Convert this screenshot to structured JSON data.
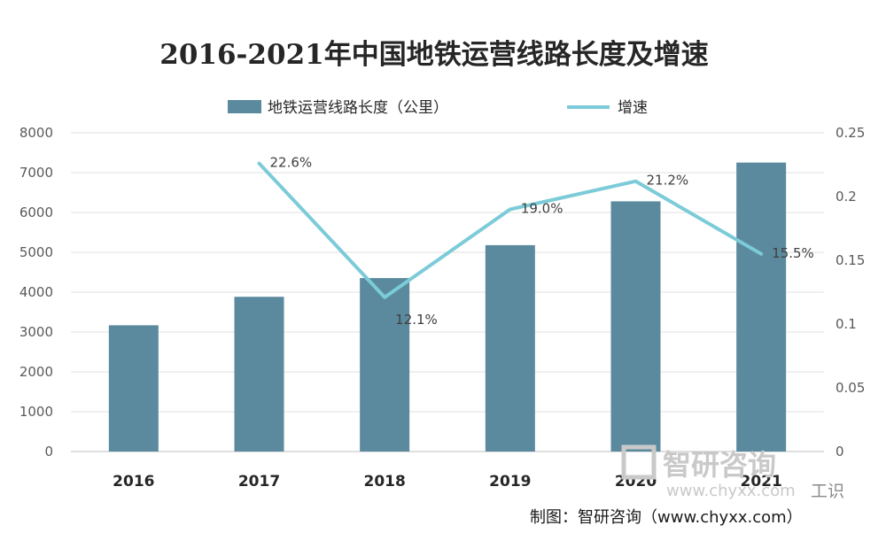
{
  "chart_data": {
    "type": "bar",
    "title": "2016-2021年中国地铁运营线路长度及增速",
    "categories": [
      "2016",
      "2017",
      "2018",
      "2019",
      "2020",
      "2021"
    ],
    "series": [
      {
        "name": "地铁运营线路长度（公里）",
        "type": "bar",
        "axis": "left",
        "values": [
          3169,
          3884,
          4354,
          5180,
          6280,
          7253
        ],
        "color": "#5b8a9e"
      },
      {
        "name": "增速",
        "type": "line",
        "axis": "right",
        "values": [
          null,
          0.226,
          0.121,
          0.19,
          0.212,
          0.155
        ],
        "labels": [
          "",
          "22.6%",
          "12.1%",
          "19.0%",
          "21.2%",
          "15.5%"
        ],
        "color": "#7ccbd8"
      }
    ],
    "ylim_left": [
      0,
      8000
    ],
    "yticks_left": [
      "0",
      "1000",
      "2000",
      "3000",
      "4000",
      "5000",
      "6000",
      "7000",
      "8000"
    ],
    "ylim_right": [
      0,
      0.25
    ],
    "yticks_right": [
      "0",
      "0.05",
      "0.1",
      "0.15",
      "0.2",
      "0.25"
    ],
    "grid": true,
    "legend": "top"
  },
  "watermark": {
    "text": "智研咨询",
    "sub": "www.chyxx.com"
  },
  "watermark2": "工识",
  "credit": "制图：智研咨询（www.chyxx.com）"
}
